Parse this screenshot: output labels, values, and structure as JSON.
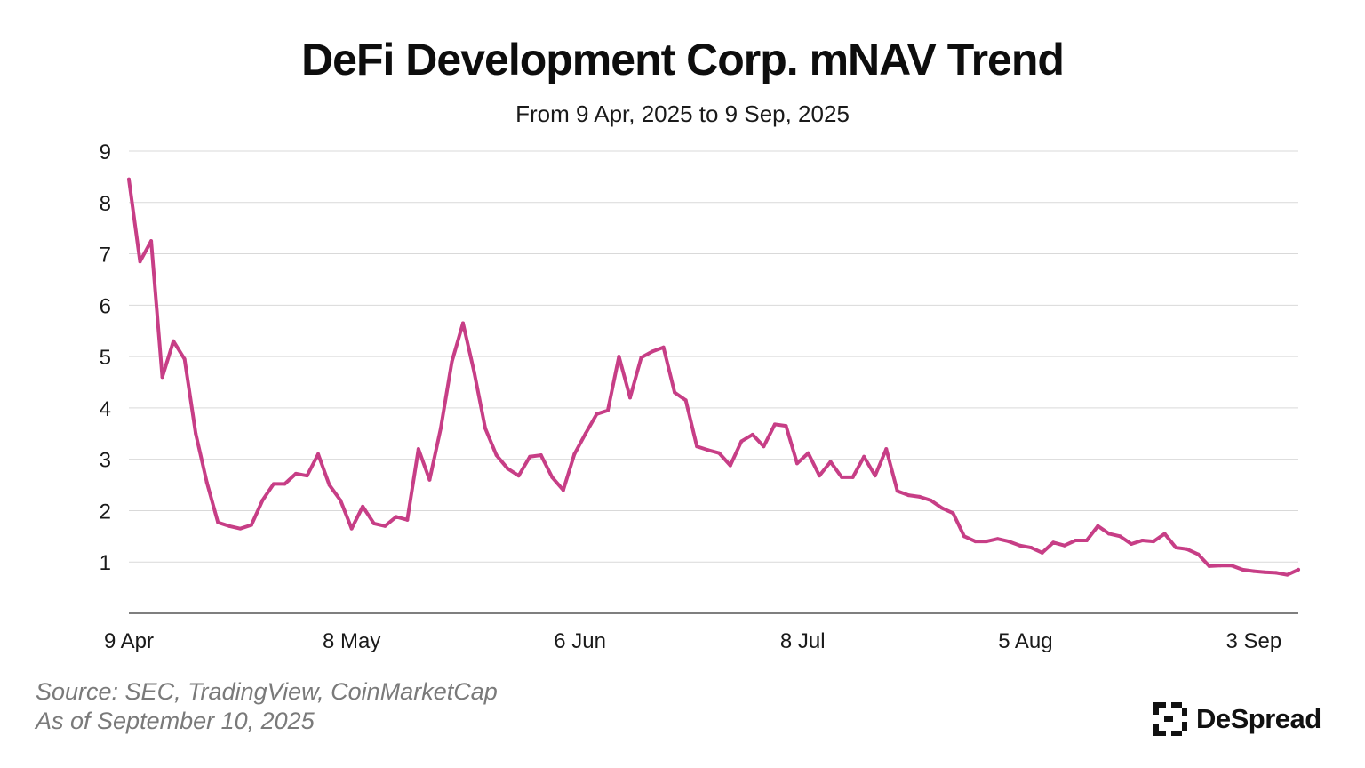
{
  "colors": {
    "line": "#c73e86",
    "grid": "#d9d9d9",
    "axis": "#555555"
  },
  "source": {
    "line1": "Source: SEC, TradingView, CoinMarketCap",
    "line2": "As of September 10, 2025"
  },
  "brand": {
    "name": "DeSpread",
    "icon": "despread-logo-icon"
  },
  "chart_data": {
    "type": "line",
    "title": "DeFi Development Corp. mNAV Trend",
    "subtitle": "From 9 Apr, 2025 to 9 Sep, 2025",
    "xlabel": "",
    "ylabel": "",
    "ylim": [
      0,
      9
    ],
    "xlim": [
      0,
      105
    ],
    "yticks": [
      1,
      2,
      3,
      4,
      5,
      6,
      7,
      8,
      9
    ],
    "xticks": [
      {
        "label": "9 Apr",
        "x": 0
      },
      {
        "label": "8 May",
        "x": 20
      },
      {
        "label": "6 Jun",
        "x": 40.5
      },
      {
        "label": "8 Jul",
        "x": 60.5
      },
      {
        "label": "5 Aug",
        "x": 80.5
      },
      {
        "label": "3 Sep",
        "x": 101
      }
    ],
    "grid": true,
    "series": [
      {
        "name": "mNAV",
        "values": [
          8.45,
          6.85,
          7.25,
          4.6,
          5.3,
          4.95,
          3.5,
          2.55,
          1.77,
          1.7,
          1.65,
          1.72,
          2.2,
          2.52,
          2.52,
          2.72,
          2.68,
          3.1,
          2.5,
          2.2,
          1.65,
          2.08,
          1.75,
          1.7,
          1.88,
          1.82,
          3.2,
          2.6,
          3.6,
          4.9,
          5.65,
          4.7,
          3.6,
          3.08,
          2.82,
          2.68,
          3.05,
          3.08,
          2.65,
          2.4,
          3.1,
          3.5,
          3.88,
          3.95,
          5.0,
          4.2,
          4.98,
          5.1,
          5.18,
          4.3,
          4.15,
          3.25,
          3.18,
          3.12,
          2.88,
          3.35,
          3.48,
          3.25,
          3.68,
          3.65,
          2.92,
          3.12,
          2.68,
          2.95,
          2.65,
          2.65,
          3.05,
          2.68,
          3.2,
          2.38,
          2.3,
          2.27,
          2.2,
          2.05,
          1.95,
          1.5,
          1.4,
          1.4,
          1.45,
          1.4,
          1.32,
          1.28,
          1.18,
          1.38,
          1.32,
          1.42,
          1.42,
          1.7,
          1.55,
          1.5,
          1.35,
          1.42,
          1.4,
          1.55,
          1.28,
          1.25,
          1.15,
          0.92,
          0.93,
          0.93,
          0.85,
          0.82,
          0.8,
          0.79,
          0.75,
          0.85
        ]
      }
    ]
  }
}
